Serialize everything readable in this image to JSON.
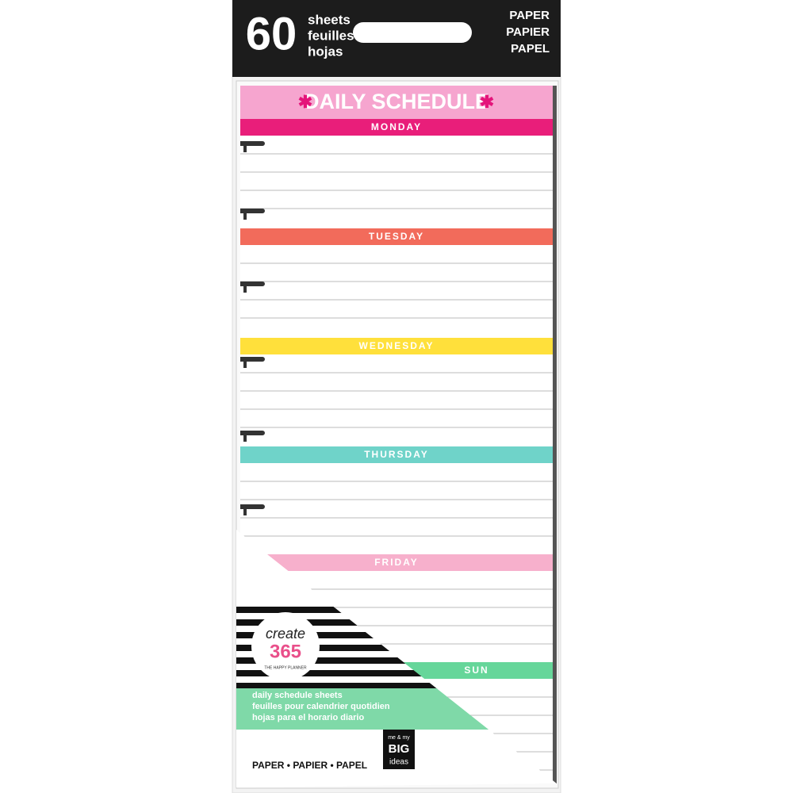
{
  "header": {
    "count": "60",
    "sheets": [
      "sheets",
      "feuilles",
      "hojas"
    ],
    "material": [
      "PAPER",
      "PAPIER",
      "PAPEL"
    ]
  },
  "page": {
    "title": "DAILY SCHEDULE",
    "days": [
      "MONDAY",
      "TUESDAY",
      "WEDNESDAY",
      "THURSDAY",
      "FRIDAY",
      "SUN"
    ]
  },
  "label": {
    "brand": "create",
    "number": "365",
    "tagline": "THE HAPPY PLANNER",
    "description": [
      "daily schedule sheets",
      "feuilles pour calendrier quotidien",
      "hojas para el horario diario"
    ],
    "material": "PAPER • PAPIER • PAPEL",
    "maker": [
      "me & my",
      "BIG",
      "ideas"
    ]
  }
}
